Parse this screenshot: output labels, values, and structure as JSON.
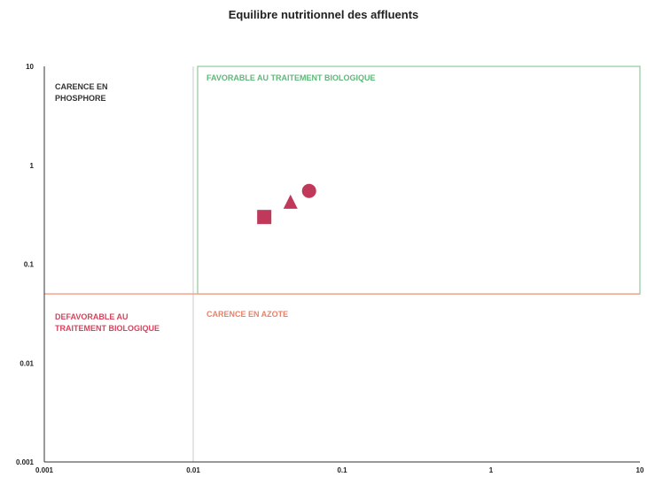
{
  "chart_data": {
    "type": "scatter",
    "title": "Equilibre nutritionnel des affluents",
    "xlabel": "",
    "ylabel": "",
    "x_scale": "log",
    "y_scale": "log",
    "xlim": [
      0.001,
      10
    ],
    "ylim": [
      0.001,
      10
    ],
    "x_ticks": [
      "0.001",
      "0.01",
      "0.1",
      "1",
      "10"
    ],
    "y_ticks": [
      "0.001",
      "0.01",
      "0.1",
      "1",
      "10"
    ],
    "grid": false,
    "regions": [
      {
        "label": "CARENCE EN PHOSPHORE",
        "color": "#333333"
      },
      {
        "label": "FAVORABLE AU TRAITEMENT BIOLOGIQUE",
        "color": "#5fb77a"
      },
      {
        "label": "DEFAVORABLE AU TRAITEMENT BIOLOGIQUE",
        "color": "#d9425b"
      },
      {
        "label": "CARENCE EN AZOTE",
        "color": "#e8806a"
      }
    ],
    "box": {
      "x": [
        0.01,
        10
      ],
      "y": [
        0.05,
        10
      ],
      "color": "#8fc99a"
    },
    "threshold_y": {
      "value": 0.05,
      "color": "#f0a58f"
    },
    "threshold_x": {
      "value": 0.01,
      "color": "#c8c8c8"
    },
    "points": [
      {
        "shape": "square",
        "x": 0.03,
        "y": 0.3,
        "color": "#c0385a"
      },
      {
        "shape": "triangle",
        "x": 0.045,
        "y": 0.42,
        "color": "#c0385a"
      },
      {
        "shape": "circle",
        "x": 0.06,
        "y": 0.55,
        "color": "#c0385a"
      }
    ]
  }
}
